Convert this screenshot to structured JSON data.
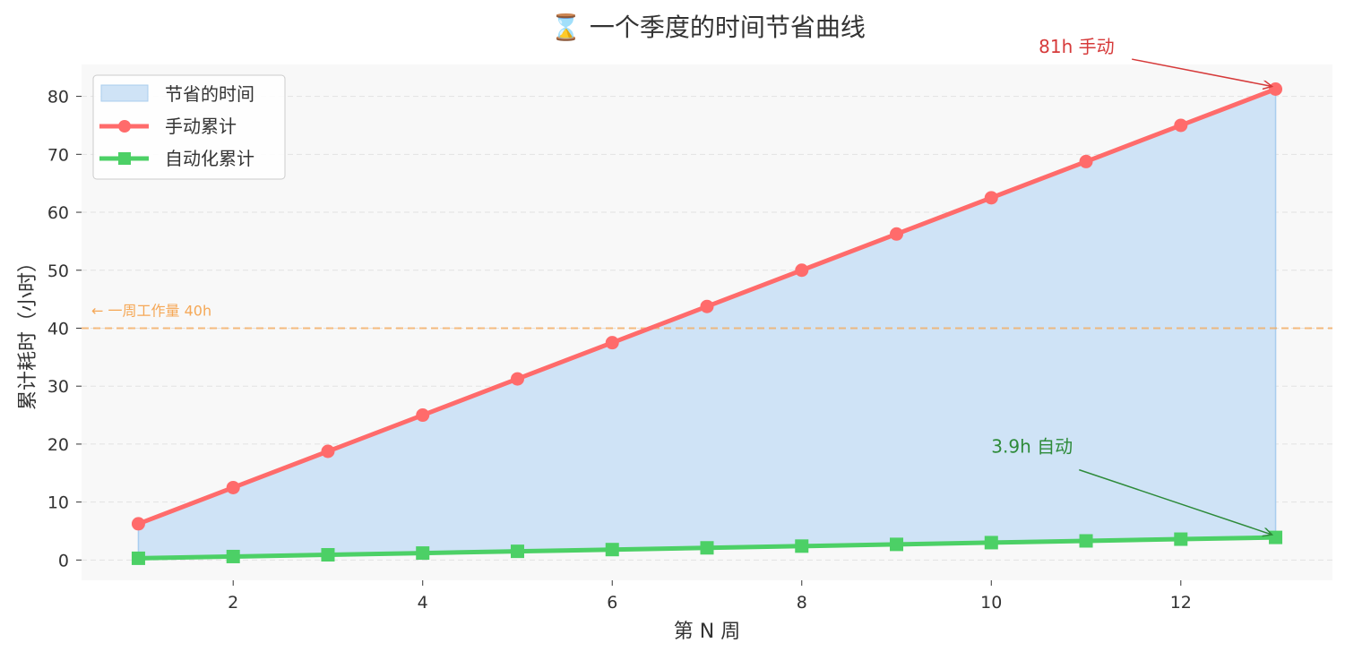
{
  "chart_data": {
    "type": "line",
    "title": "⌛ 一个季度的时间节省曲线",
    "xlabel": "第 N 周",
    "ylabel": "累计耗时（小时）",
    "x": [
      1,
      2,
      3,
      4,
      5,
      6,
      7,
      8,
      9,
      10,
      11,
      12,
      13
    ],
    "xlim": [
      0.4,
      13.6
    ],
    "ylim": [
      -3.5,
      85.5
    ],
    "xticks": [
      2,
      4,
      6,
      8,
      10,
      12
    ],
    "yticks": [
      0,
      10,
      20,
      30,
      40,
      50,
      60,
      70,
      80
    ],
    "grid": "y-dashed",
    "legend_position": "top-left",
    "fill_between": {
      "name": "节省的时间",
      "color": "#cfe3f6",
      "edge_color": "#a9cdef",
      "between": [
        "手动累计",
        "自动化累计"
      ]
    },
    "series": [
      {
        "name": "手动累计",
        "marker": "circle",
        "color": "#ff6b6b",
        "values": [
          6.25,
          12.5,
          18.75,
          25,
          31.25,
          37.5,
          43.75,
          50,
          56.25,
          62.5,
          68.75,
          75,
          81.25
        ]
      },
      {
        "name": "自动化累计",
        "marker": "square",
        "color": "#4cd066",
        "values": [
          0.3,
          0.6,
          0.9,
          1.2,
          1.5,
          1.8,
          2.1,
          2.4,
          2.7,
          3.0,
          3.3,
          3.6,
          3.9
        ]
      }
    ],
    "reference_line": {
      "y": 40,
      "label": "← 一周工作量 40h",
      "color": "#f5a857"
    },
    "annotations": [
      {
        "text": "81h 手动",
        "point_x": 13,
        "point_y": 81.25,
        "text_x": 10.5,
        "text_y": 87.5,
        "color": "#d63a3a"
      },
      {
        "text": "3.9h 自动",
        "point_x": 13,
        "point_y": 3.9,
        "text_x": 10.0,
        "text_y": 18.5,
        "color": "#2e8b3a"
      }
    ],
    "colors": {
      "plot_bg": "#f8f8f8",
      "grid": "#e2e2e2",
      "text": "#333333"
    }
  }
}
